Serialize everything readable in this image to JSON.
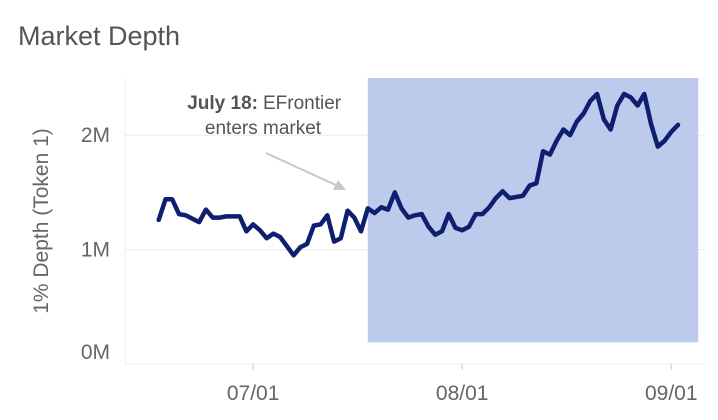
{
  "chart_data": {
    "type": "line",
    "title": "Market Depth",
    "y_label": "1% Depth (Token 1)",
    "x": [
      "06/17",
      "06/18",
      "06/19",
      "06/20",
      "06/21",
      "06/22",
      "06/23",
      "06/24",
      "06/25",
      "06/26",
      "06/27",
      "06/28",
      "06/29",
      "06/30",
      "07/01",
      "07/02",
      "07/03",
      "07/04",
      "07/05",
      "07/06",
      "07/07",
      "07/08",
      "07/09",
      "07/10",
      "07/11",
      "07/12",
      "07/13",
      "07/14",
      "07/15",
      "07/16",
      "07/17",
      "07/18",
      "07/19",
      "07/20",
      "07/21",
      "07/22",
      "07/23",
      "07/24",
      "07/25",
      "07/26",
      "07/27",
      "07/28",
      "07/29",
      "07/30",
      "07/31",
      "08/01",
      "08/02",
      "08/03",
      "08/04",
      "08/05",
      "08/06",
      "08/07",
      "08/08",
      "08/09",
      "08/10",
      "08/11",
      "08/12",
      "08/13",
      "08/14",
      "08/15",
      "08/16",
      "08/17",
      "08/18",
      "08/19",
      "08/20",
      "08/21",
      "08/22",
      "08/23",
      "08/24",
      "08/25",
      "08/26",
      "08/27",
      "08/28",
      "08/29",
      "08/30",
      "08/31",
      "09/01",
      "09/02"
    ],
    "series": [
      {
        "name": "1% Depth",
        "color": "#0d1f6e",
        "values": [
          1260000,
          1440000,
          1440000,
          1310000,
          1300000,
          1270000,
          1240000,
          1350000,
          1280000,
          1280000,
          1290000,
          1290000,
          1290000,
          1160000,
          1220000,
          1170000,
          1100000,
          1140000,
          1110000,
          1030000,
          950000,
          1020000,
          1050000,
          1210000,
          1220000,
          1300000,
          1070000,
          1100000,
          1340000,
          1280000,
          1160000,
          1360000,
          1320000,
          1370000,
          1350000,
          1500000,
          1360000,
          1280000,
          1300000,
          1310000,
          1200000,
          1130000,
          1160000,
          1310000,
          1190000,
          1170000,
          1200000,
          1310000,
          1310000,
          1370000,
          1450000,
          1510000,
          1450000,
          1460000,
          1470000,
          1560000,
          1580000,
          1860000,
          1830000,
          1950000,
          2050000,
          2000000,
          2120000,
          2190000,
          2300000,
          2360000,
          2140000,
          2050000,
          2260000,
          2360000,
          2330000,
          2260000,
          2360000,
          2100000,
          1900000,
          1950000,
          2030000,
          2090000
        ]
      }
    ],
    "xlim": [
      "06/12",
      "09/06"
    ],
    "xticks": [
      "07/01",
      "08/01",
      "09/01"
    ],
    "ylim": [
      0,
      2500000
    ],
    "yticks": [
      {
        "value": 0,
        "label": "0M"
      },
      {
        "value": 1000000,
        "label": "1M"
      },
      {
        "value": 2000000,
        "label": "2M"
      }
    ],
    "grid": true,
    "highlight": {
      "x": [
        "07/18",
        "09/05"
      ],
      "y": [
        190000,
        2500000
      ],
      "color": "#bccbeb"
    },
    "annotation": {
      "label": "July 18:",
      "lines": [
        "EFrontier",
        "enters market"
      ]
    }
  }
}
